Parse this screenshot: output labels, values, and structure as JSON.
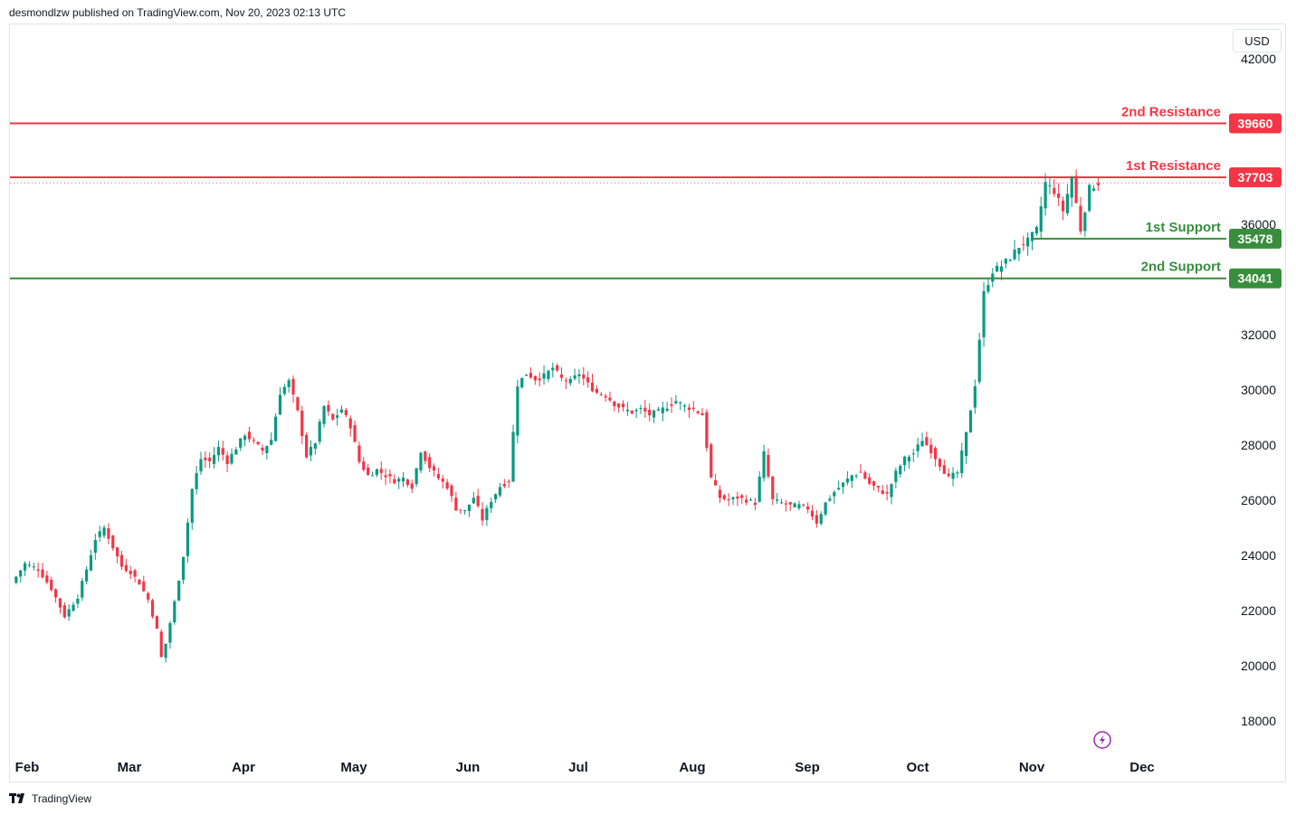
{
  "header": {
    "published": "desmondlzw published on TradingView.com, Nov 20, 2023 02:13 UTC"
  },
  "currency": "USD",
  "footer": {
    "brand": "TradingView"
  },
  "icons": {
    "logo": "tradingview-logo-icon",
    "lightning": "lightning-icon"
  },
  "chart_data": {
    "type": "candlestick",
    "y_axis": {
      "ticks": [
        18000,
        20000,
        22000,
        24000,
        26000,
        28000,
        30000,
        32000,
        36000,
        42000
      ]
    },
    "x_axis": {
      "months": [
        "Feb",
        "Mar",
        "Apr",
        "May",
        "Jun",
        "Jul",
        "Aug",
        "Sep",
        "Oct",
        "Nov",
        "Dec"
      ]
    },
    "levels": [
      {
        "label": "2nd Resistance",
        "value": 39660,
        "color": "#f23645"
      },
      {
        "label": "1st Resistance",
        "value": 37703,
        "color": "#f23645"
      },
      {
        "label": "1st Support",
        "value": 35478,
        "color": "#388e3c"
      },
      {
        "label": "2nd Support",
        "value": 34041,
        "color": "#388e3c"
      }
    ],
    "colors": {
      "up": "#089981",
      "down": "#f23645"
    },
    "close_path": [
      [
        0,
        23000
      ],
      [
        3,
        23700
      ],
      [
        6,
        23500
      ],
      [
        9,
        22800
      ],
      [
        12,
        21800
      ],
      [
        15,
        22500
      ],
      [
        17,
        23500
      ],
      [
        19,
        24600
      ],
      [
        21,
        25000
      ],
      [
        23,
        24300
      ],
      [
        25,
        23600
      ],
      [
        27,
        23400
      ],
      [
        29,
        23000
      ],
      [
        31,
        22400
      ],
      [
        33,
        21300
      ],
      [
        34,
        20300
      ],
      [
        35,
        20800
      ],
      [
        37,
        22300
      ],
      [
        39,
        24000
      ],
      [
        41,
        26400
      ],
      [
        43,
        27500
      ],
      [
        45,
        27400
      ],
      [
        47,
        27900
      ],
      [
        49,
        27400
      ],
      [
        51,
        27900
      ],
      [
        53,
        28400
      ],
      [
        55,
        28100
      ],
      [
        57,
        27800
      ],
      [
        59,
        28200
      ],
      [
        61,
        29900
      ],
      [
        63,
        30300
      ],
      [
        65,
        29200
      ],
      [
        67,
        27600
      ],
      [
        69,
        28100
      ],
      [
        71,
        29400
      ],
      [
        73,
        28900
      ],
      [
        75,
        29300
      ],
      [
        77,
        28700
      ],
      [
        79,
        27400
      ],
      [
        81,
        26900
      ],
      [
        83,
        27100
      ],
      [
        85,
        26900
      ],
      [
        87,
        26700
      ],
      [
        89,
        26800
      ],
      [
        91,
        26500
      ],
      [
        93,
        27800
      ],
      [
        95,
        27200
      ],
      [
        97,
        26800
      ],
      [
        99,
        26500
      ],
      [
        101,
        25700
      ],
      [
        103,
        25600
      ],
      [
        105,
        26100
      ],
      [
        107,
        25300
      ],
      [
        109,
        26000
      ],
      [
        111,
        26500
      ],
      [
        113,
        26700
      ],
      [
        115,
        30200
      ],
      [
        117,
        30600
      ],
      [
        119,
        30400
      ],
      [
        121,
        30500
      ],
      [
        123,
        30800
      ],
      [
        125,
        30400
      ],
      [
        127,
        30300
      ],
      [
        129,
        30600
      ],
      [
        131,
        30200
      ],
      [
        133,
        29900
      ],
      [
        135,
        29800
      ],
      [
        137,
        29500
      ],
      [
        139,
        29300
      ],
      [
        141,
        29200
      ],
      [
        143,
        29300
      ],
      [
        145,
        29100
      ],
      [
        147,
        29200
      ],
      [
        149,
        29400
      ],
      [
        151,
        29600
      ],
      [
        153,
        29400
      ],
      [
        155,
        29300
      ],
      [
        157,
        29100
      ],
      [
        159,
        26800
      ],
      [
        161,
        26100
      ],
      [
        163,
        26000
      ],
      [
        165,
        26100
      ],
      [
        167,
        26000
      ],
      [
        169,
        25900
      ],
      [
        171,
        27700
      ],
      [
        173,
        26000
      ],
      [
        175,
        25900
      ],
      [
        177,
        25800
      ],
      [
        179,
        25800
      ],
      [
        181,
        25700
      ],
      [
        183,
        25200
      ],
      [
        185,
        25900
      ],
      [
        187,
        26300
      ],
      [
        189,
        26600
      ],
      [
        191,
        26900
      ],
      [
        193,
        27000
      ],
      [
        195,
        26600
      ],
      [
        197,
        26400
      ],
      [
        199,
        26200
      ],
      [
        201,
        27000
      ],
      [
        203,
        27500
      ],
      [
        205,
        27700
      ],
      [
        207,
        28200
      ],
      [
        209,
        27800
      ],
      [
        211,
        27300
      ],
      [
        213,
        26800
      ],
      [
        215,
        27000
      ],
      [
        217,
        28400
      ],
      [
        219,
        30200
      ],
      [
        221,
        33500
      ],
      [
        223,
        34300
      ],
      [
        225,
        34500
      ],
      [
        227,
        34800
      ],
      [
        229,
        35200
      ],
      [
        231,
        35400
      ],
      [
        233,
        35800
      ],
      [
        235,
        37500
      ],
      [
        237,
        37200
      ],
      [
        239,
        36500
      ],
      [
        241,
        37700
      ],
      [
        243,
        35800
      ],
      [
        245,
        37300
      ],
      [
        247,
        37500
      ]
    ]
  }
}
